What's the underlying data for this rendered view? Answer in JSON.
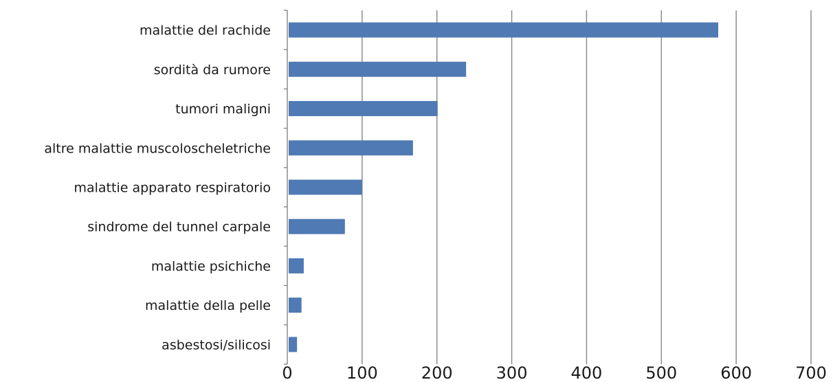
{
  "chart_data": {
    "type": "bar",
    "orientation": "horizontal",
    "title": "",
    "xlabel": "",
    "ylabel": "",
    "categories": [
      "malattie del rachide",
      "sordità da rumore",
      "tumori maligni",
      "altre malattie muscoloscheletriche",
      "malattie apparato respiratorio",
      "sindrome del tunnel carpale",
      "malattie psichiche",
      "malattie della pelle",
      "asbestosi/silicosi"
    ],
    "values": [
      576,
      239,
      201,
      168,
      100,
      77,
      22,
      19,
      13
    ],
    "xlim": [
      0,
      700
    ],
    "xticks": [
      "0",
      "100",
      "200",
      "300",
      "400",
      "500",
      "600",
      "700"
    ],
    "grid": "vertical",
    "legend": "none",
    "bar_color": "#4f7ab4",
    "grid_color": "#8c8c8c"
  }
}
